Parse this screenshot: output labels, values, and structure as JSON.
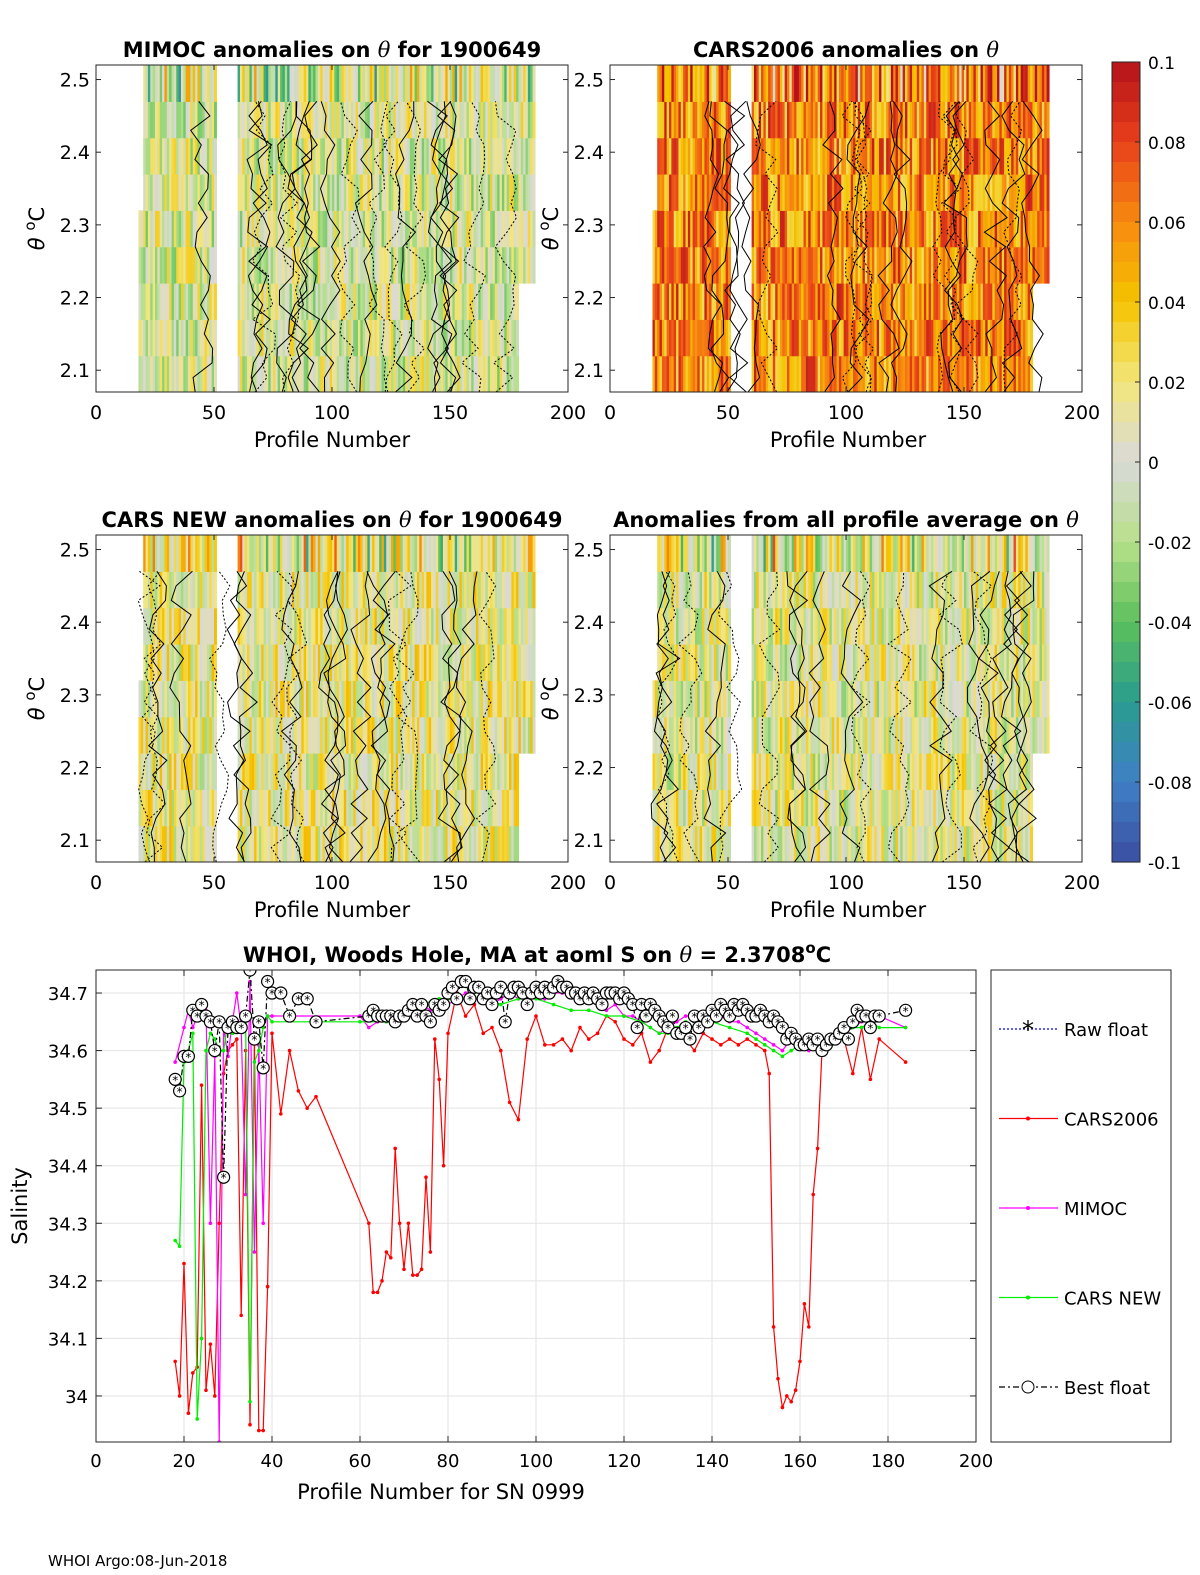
{
  "footer": "WHOI Argo:08-Jun-2018",
  "colorbar": {
    "ticks": [
      "0.1",
      "0.08",
      "0.06",
      "0.04",
      "0.02",
      "0",
      "-0.02",
      "-0.04",
      "-0.06",
      "-0.08",
      "-0.1"
    ],
    "tick_values": [
      0.1,
      0.08,
      0.06,
      0.04,
      0.02,
      0,
      -0.02,
      -0.04,
      -0.06,
      -0.08,
      -0.1
    ],
    "range": [
      -0.1,
      0.1
    ],
    "colors": [
      "#3b4ea0",
      "#3f7fc7",
      "#2a9d8f",
      "#5cc05c",
      "#b8e08a",
      "#d9d9d9",
      "#f2e67a",
      "#f5c400",
      "#f78a10",
      "#e8401a",
      "#b5121b"
    ]
  },
  "chart_data": [
    {
      "type": "heatmap",
      "title_parts": [
        "MIMOC anomalies on ",
        "θ",
        "  for 1900649"
      ],
      "xlabel": "Profile Number",
      "ylabel_parts": [
        "θ",
        " ",
        "o",
        "C"
      ],
      "xlim": [
        0,
        200
      ],
      "ylim": [
        2.07,
        2.52
      ],
      "xticks": [
        "0",
        "50",
        "100",
        "150",
        "200"
      ],
      "yticks": [
        "2.1",
        "2.2",
        "2.3",
        "2.4",
        "2.5"
      ],
      "data_bias": 0.0
    },
    {
      "type": "heatmap",
      "title_parts": [
        "CARS2006 anomalies on ",
        "θ",
        "",
        ""
      ],
      "xlabel": "Profile Number",
      "ylabel_parts": [
        "θ",
        " ",
        "o",
        "C"
      ],
      "xlim": [
        0,
        200
      ],
      "ylim": [
        2.07,
        2.52
      ],
      "xticks": [
        "0",
        "50",
        "100",
        "150",
        "200"
      ],
      "yticks": [
        "2.1",
        "2.2",
        "2.3",
        "2.4",
        "2.5"
      ],
      "data_bias": 0.06
    },
    {
      "type": "heatmap",
      "title_parts": [
        "CARS NEW anomalies on ",
        "θ",
        " for 1900649",
        ""
      ],
      "xlabel": "Profile Number",
      "ylabel_parts": [
        "θ",
        " ",
        "o",
        "C"
      ],
      "xlim": [
        0,
        200
      ],
      "ylim": [
        2.07,
        2.52
      ],
      "xticks": [
        "0",
        "50",
        "100",
        "150",
        "200"
      ],
      "yticks": [
        "2.1",
        "2.2",
        "2.3",
        "2.4",
        "2.5"
      ],
      "data_bias": 0.01
    },
    {
      "type": "heatmap",
      "title_parts": [
        "Anomalies from all profile average on ",
        "θ",
        "",
        ""
      ],
      "xlabel": "Profile Number",
      "ylabel_parts": [
        "θ",
        " ",
        "o",
        "C"
      ],
      "xlim": [
        0,
        200
      ],
      "ylim": [
        2.07,
        2.52
      ],
      "xticks": [
        "0",
        "50",
        "100",
        "150",
        "200"
      ],
      "yticks": [
        "2.1",
        "2.2",
        "2.3",
        "2.4",
        "2.5"
      ],
      "data_bias": 0.005
    },
    {
      "type": "line",
      "title_parts": [
        "WHOI, Woods Hole, MA at aoml S on ",
        "θ",
        " = 2.3708",
        "o",
        "C"
      ],
      "xlabel": "Profile Number for SN 0999",
      "ylabel": "Salinity",
      "xlim": [
        0,
        200
      ],
      "ylim": [
        33.92,
        34.74
      ],
      "xticks": [
        "0",
        "20",
        "40",
        "60",
        "80",
        "100",
        "120",
        "140",
        "160",
        "180",
        "200"
      ],
      "yticks": [
        "34",
        "34.1",
        "34.2",
        "34.3",
        "34.4",
        "34.5",
        "34.6",
        "34.7"
      ],
      "grid": true,
      "legend": [
        "Raw float",
        "CARS2006",
        "MIMOC",
        "CARS NEW",
        "Best float"
      ],
      "series": [
        {
          "name": "CARS2006",
          "color": "#ff0000",
          "x": [
            18,
            19,
            20,
            21,
            22,
            23,
            24,
            25,
            26,
            27,
            28,
            29,
            30,
            31,
            32,
            33,
            34,
            35,
            36,
            37,
            38,
            39,
            40,
            42,
            44,
            46,
            48,
            50,
            62,
            63,
            64,
            65,
            66,
            67,
            68,
            69,
            70,
            71,
            72,
            73,
            74,
            75,
            76,
            77,
            78,
            79,
            80,
            82,
            84,
            86,
            88,
            90,
            92,
            94,
            96,
            98,
            100,
            102,
            104,
            106,
            108,
            110,
            112,
            114,
            116,
            118,
            120,
            122,
            124,
            126,
            128,
            130,
            132,
            134,
            136,
            138,
            140,
            142,
            144,
            146,
            148,
            150,
            152,
            153,
            154,
            155,
            156,
            157,
            158,
            159,
            160,
            161,
            162,
            163,
            164,
            165,
            166,
            167,
            168,
            170,
            172,
            174,
            176,
            178,
            184
          ],
          "y": [
            34.06,
            34.0,
            34.23,
            33.97,
            34.04,
            34.05,
            34.54,
            34.01,
            34.09,
            34.0,
            34.3,
            34.56,
            34.6,
            34.61,
            34.62,
            34.14,
            34.6,
            33.95,
            34.62,
            33.94,
            33.94,
            34.19,
            34.63,
            34.49,
            34.6,
            34.53,
            34.5,
            34.52,
            34.3,
            34.18,
            34.18,
            34.2,
            34.25,
            34.24,
            34.43,
            34.3,
            34.22,
            34.3,
            34.21,
            34.21,
            34.22,
            34.38,
            34.25,
            34.62,
            34.55,
            34.4,
            34.63,
            34.7,
            34.66,
            34.68,
            34.63,
            34.64,
            34.6,
            34.51,
            34.48,
            34.62,
            34.66,
            34.61,
            34.61,
            34.62,
            34.6,
            34.64,
            34.62,
            34.63,
            34.66,
            34.65,
            34.62,
            34.61,
            34.63,
            34.58,
            34.6,
            34.64,
            34.63,
            34.62,
            34.6,
            34.63,
            34.62,
            34.61,
            34.62,
            34.61,
            34.62,
            34.61,
            34.6,
            34.56,
            34.12,
            34.03,
            33.98,
            34.0,
            33.99,
            34.01,
            34.06,
            34.16,
            34.12,
            34.35,
            34.43,
            34.6,
            34.62,
            34.61,
            34.62,
            34.62,
            34.56,
            34.64,
            34.55,
            34.62,
            34.58
          ]
        },
        {
          "name": "MIMOC",
          "color": "#ff00ff",
          "x": [
            18,
            20,
            21,
            22,
            23,
            24,
            25,
            26,
            27,
            28,
            29,
            30,
            31,
            32,
            33,
            34,
            35,
            36,
            37,
            38,
            39,
            40,
            60,
            62,
            64,
            66,
            68,
            70,
            72,
            74,
            76,
            78,
            80,
            82,
            84,
            86,
            88,
            90,
            92,
            94,
            96,
            98,
            100,
            102,
            104,
            106,
            108,
            110,
            112,
            114,
            116,
            118,
            120,
            122,
            124,
            126,
            128,
            130,
            132,
            134,
            136,
            138,
            140,
            142,
            144,
            146,
            148,
            150,
            152,
            154,
            156,
            158,
            160,
            162,
            164,
            166,
            168,
            170,
            172,
            174,
            176,
            178,
            184
          ],
          "y": [
            34.58,
            34.64,
            34.67,
            34.64,
            34.66,
            34.68,
            34.67,
            34.3,
            34.59,
            33.92,
            34.64,
            34.59,
            34.65,
            34.7,
            34.64,
            34.35,
            34.72,
            34.25,
            34.61,
            34.3,
            34.66,
            34.66,
            34.66,
            34.64,
            34.65,
            34.66,
            34.65,
            34.66,
            34.67,
            34.68,
            34.67,
            34.68,
            34.68,
            34.69,
            34.7,
            34.69,
            34.69,
            34.68,
            34.69,
            34.7,
            34.69,
            34.69,
            34.7,
            34.69,
            34.7,
            34.7,
            34.7,
            34.69,
            34.69,
            34.68,
            34.67,
            34.68,
            34.66,
            34.66,
            34.65,
            34.64,
            34.63,
            34.64,
            34.65,
            34.66,
            34.66,
            34.66,
            34.67,
            34.66,
            34.65,
            34.65,
            34.64,
            34.63,
            34.62,
            34.61,
            34.6,
            34.62,
            34.61,
            34.6,
            34.61,
            34.61,
            34.63,
            34.63,
            34.64,
            34.65,
            34.65,
            34.66,
            34.64
          ]
        },
        {
          "name": "CARS NEW",
          "color": "#00ee00",
          "x": [
            18,
            19,
            20,
            21,
            22,
            23,
            24,
            25,
            26,
            27,
            28,
            29,
            30,
            31,
            32,
            33,
            34,
            35,
            36,
            37,
            38,
            39,
            40,
            50,
            60,
            66,
            70,
            74,
            78,
            80,
            84,
            88,
            92,
            96,
            100,
            104,
            108,
            112,
            116,
            120,
            124,
            126,
            128,
            130,
            132,
            134,
            136,
            140,
            144,
            148,
            150,
            152,
            154,
            156,
            158,
            160,
            162,
            164,
            166,
            168,
            170,
            172,
            174,
            176,
            178,
            184
          ],
          "y": [
            34.27,
            34.26,
            34.58,
            34.6,
            34.63,
            33.96,
            34.1,
            34.6,
            34.63,
            34.62,
            34.6,
            34.6,
            34.65,
            34.63,
            34.64,
            34.64,
            34.65,
            33.99,
            34.58,
            34.6,
            34.64,
            34.66,
            34.65,
            34.65,
            34.65,
            34.65,
            34.67,
            34.68,
            34.69,
            34.69,
            34.69,
            34.69,
            34.68,
            34.69,
            34.69,
            34.68,
            34.67,
            34.67,
            34.66,
            34.66,
            34.65,
            34.64,
            34.63,
            34.63,
            34.64,
            34.65,
            34.64,
            34.65,
            34.64,
            34.63,
            34.62,
            34.61,
            34.6,
            34.59,
            34.6,
            34.61,
            34.62,
            34.61,
            34.62,
            34.62,
            34.63,
            34.64,
            34.64,
            34.65,
            34.64,
            34.64
          ]
        },
        {
          "name": "Best float",
          "color": "#000000",
          "x": [
            18,
            19,
            20,
            21,
            22,
            23,
            24,
            25,
            26,
            27,
            28,
            29,
            30,
            31,
            32,
            33,
            34,
            35,
            36,
            37,
            38,
            39,
            40,
            42,
            44,
            46,
            48,
            50,
            62,
            63,
            64,
            65,
            66,
            67,
            68,
            69,
            70,
            71,
            72,
            73,
            74,
            75,
            76,
            77,
            78,
            79,
            80,
            81,
            82,
            83,
            84,
            85,
            86,
            87,
            88,
            89,
            90,
            91,
            92,
            93,
            94,
            95,
            96,
            97,
            98,
            99,
            100,
            101,
            102,
            103,
            104,
            105,
            106,
            107,
            108,
            109,
            110,
            111,
            112,
            113,
            114,
            115,
            116,
            117,
            118,
            119,
            120,
            121,
            122,
            123,
            124,
            125,
            126,
            127,
            128,
            129,
            130,
            131,
            132,
            133,
            134,
            135,
            136,
            137,
            138,
            139,
            140,
            141,
            142,
            143,
            144,
            145,
            146,
            147,
            148,
            149,
            150,
            151,
            152,
            153,
            154,
            155,
            156,
            157,
            158,
            159,
            160,
            161,
            162,
            163,
            164,
            165,
            166,
            167,
            168,
            169,
            170,
            171,
            172,
            173,
            174,
            175,
            176,
            177,
            178,
            184
          ],
          "y": [
            34.55,
            34.53,
            34.59,
            34.59,
            34.67,
            34.66,
            34.68,
            34.66,
            34.65,
            34.6,
            34.65,
            34.38,
            34.64,
            34.65,
            34.64,
            34.64,
            34.66,
            34.74,
            34.62,
            34.65,
            34.57,
            34.72,
            34.7,
            34.7,
            34.66,
            34.69,
            34.69,
            34.65,
            34.66,
            34.67,
            34.66,
            34.66,
            34.66,
            34.66,
            34.65,
            34.66,
            34.66,
            34.67,
            34.68,
            34.66,
            34.68,
            34.66,
            34.65,
            34.68,
            34.67,
            34.68,
            34.7,
            34.71,
            34.69,
            34.72,
            34.72,
            34.69,
            34.71,
            34.71,
            34.69,
            34.7,
            34.68,
            34.7,
            34.71,
            34.65,
            34.7,
            34.71,
            34.71,
            34.7,
            34.68,
            34.7,
            34.71,
            34.7,
            34.71,
            34.7,
            34.71,
            34.72,
            34.71,
            34.71,
            34.7,
            34.7,
            34.69,
            34.7,
            34.69,
            34.7,
            34.69,
            34.68,
            34.7,
            34.7,
            34.7,
            34.69,
            34.7,
            34.69,
            34.68,
            34.64,
            34.68,
            34.66,
            34.68,
            34.67,
            34.66,
            34.65,
            34.64,
            34.66,
            34.63,
            34.63,
            34.64,
            34.62,
            34.66,
            34.64,
            34.66,
            34.65,
            34.67,
            34.66,
            34.68,
            34.67,
            34.66,
            34.68,
            34.67,
            34.68,
            34.67,
            34.66,
            34.66,
            34.67,
            34.66,
            34.65,
            34.66,
            34.65,
            34.64,
            34.62,
            34.63,
            34.62,
            34.61,
            34.61,
            34.62,
            34.61,
            34.62,
            34.6,
            34.61,
            34.62,
            34.62,
            34.63,
            34.64,
            34.62,
            34.65,
            34.67,
            34.66,
            34.66,
            34.64,
            34.66,
            34.66,
            34.67
          ]
        }
      ]
    }
  ]
}
